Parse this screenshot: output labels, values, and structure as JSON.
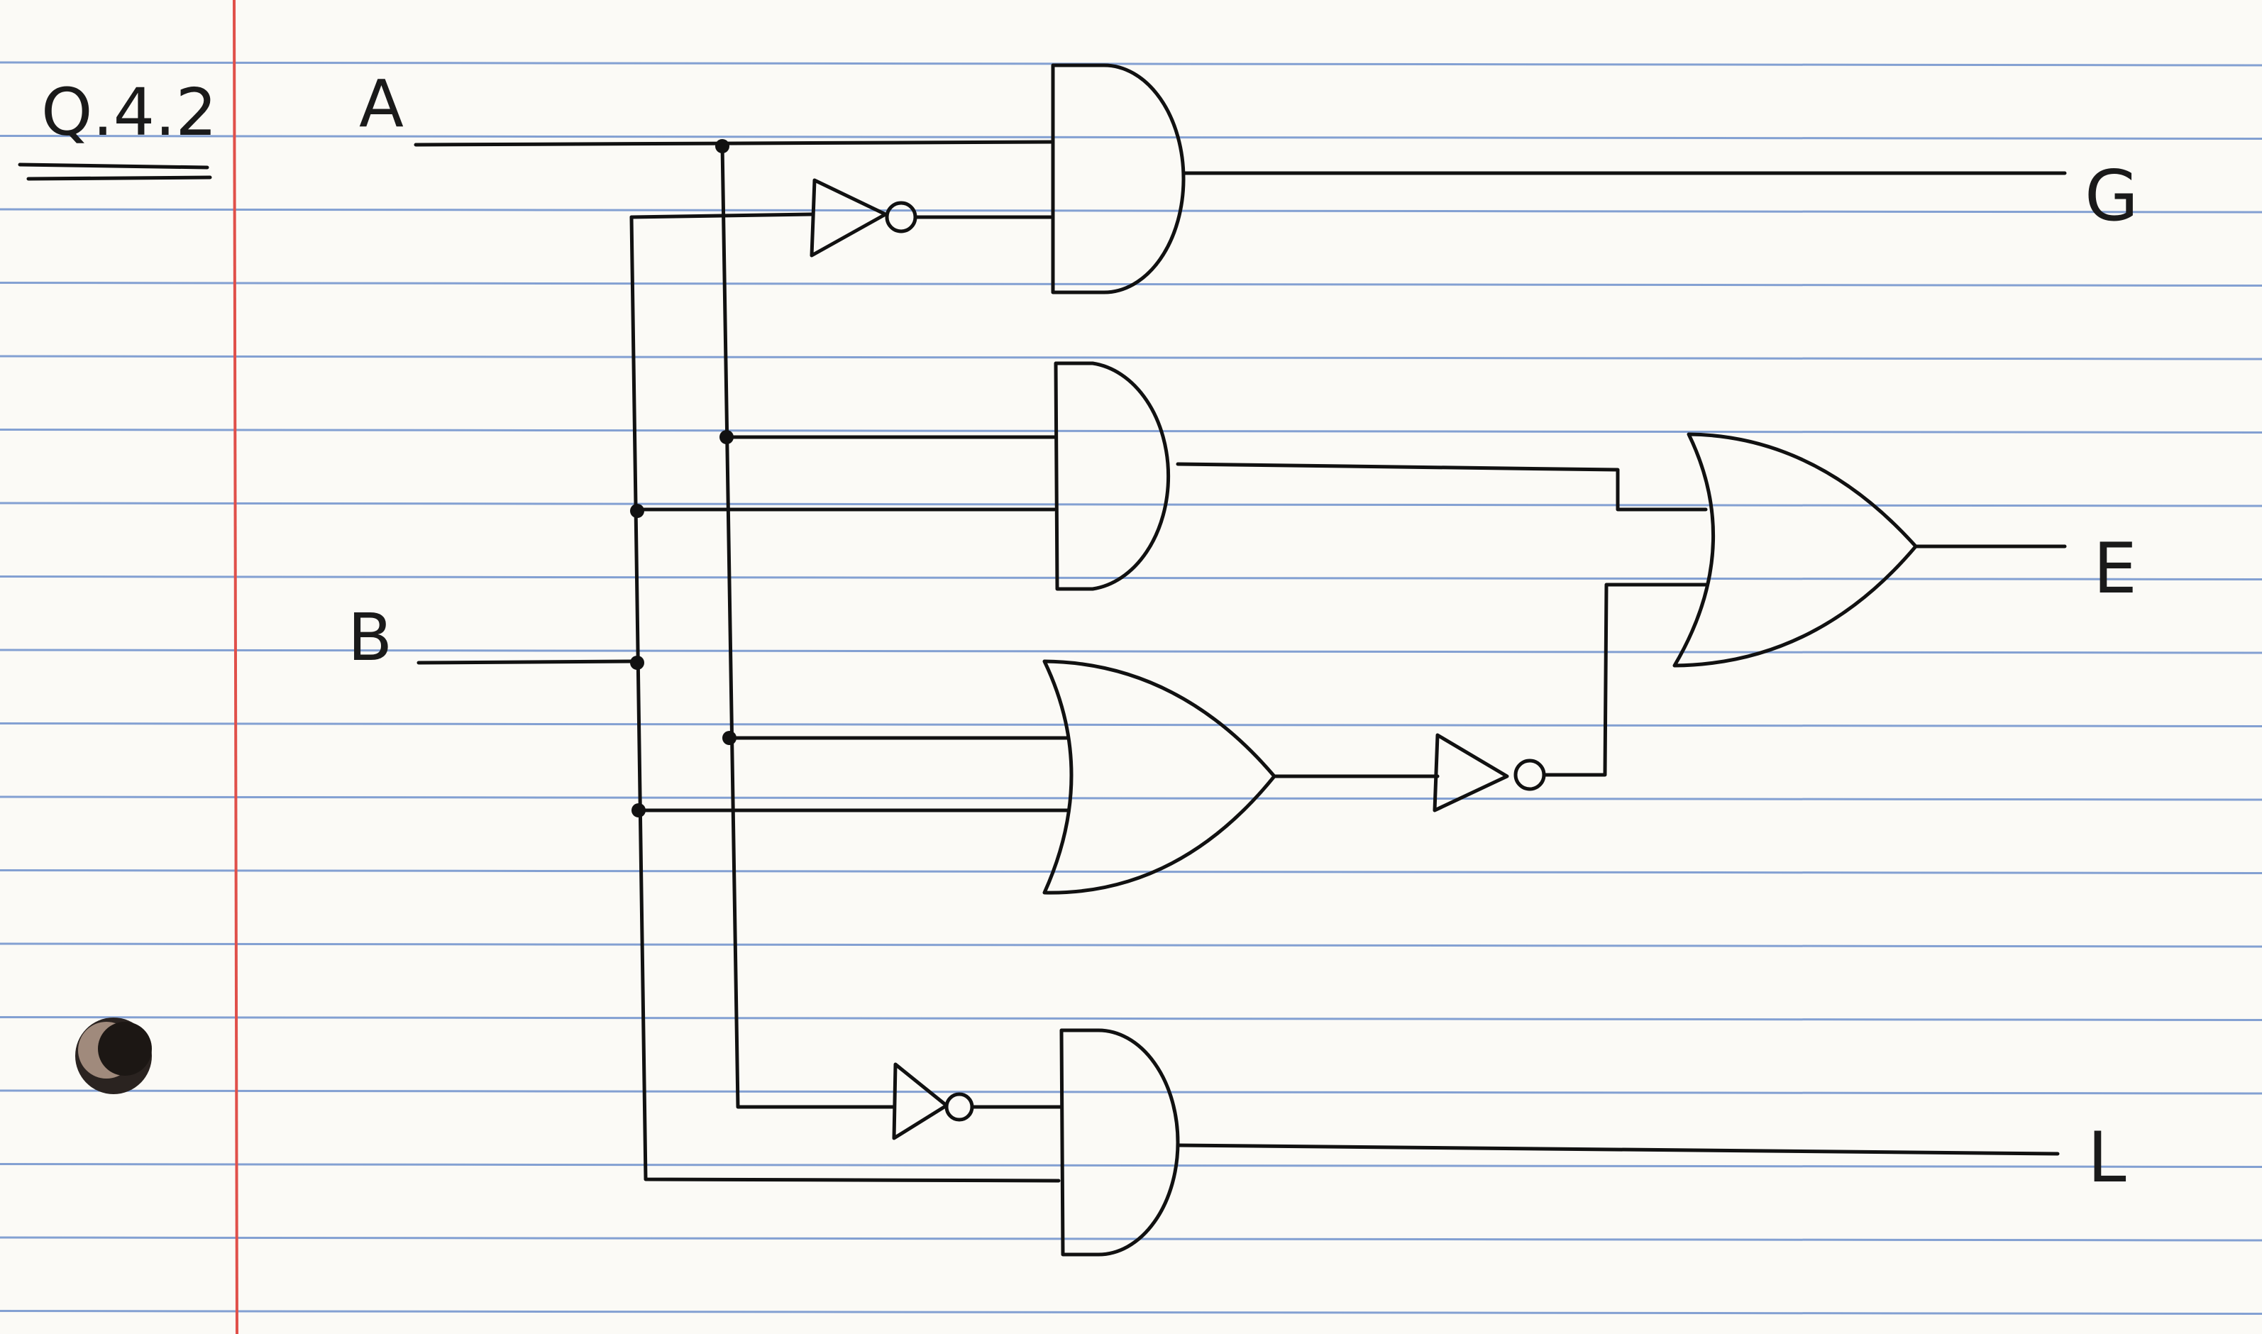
{
  "question_label": "Q.4.2",
  "inputs": {
    "a": "A",
    "b": "B"
  },
  "outputs": {
    "g": "G",
    "e": "E",
    "l": "L"
  },
  "colors": {
    "paper": "#fbfaf6",
    "rule_lines": "#5b83c7",
    "margin_line": "#e0504a",
    "ink": "#111111"
  }
}
